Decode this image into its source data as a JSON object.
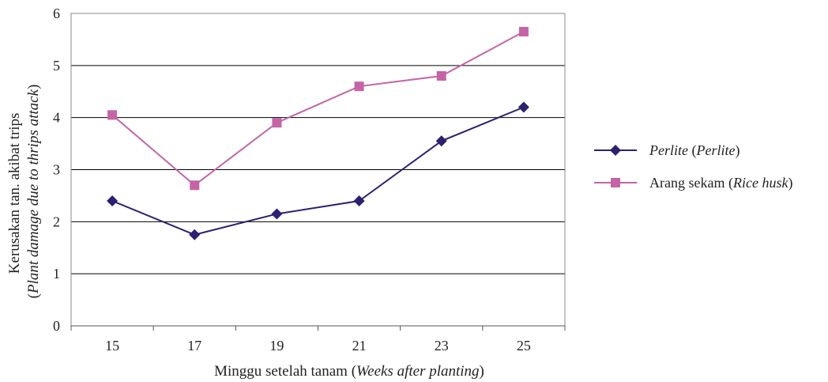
{
  "chart_data": {
    "type": "line",
    "title": "",
    "x": [
      15,
      17,
      19,
      21,
      23,
      25
    ],
    "series": [
      {
        "name": "Perlite (Perlite)",
        "name_main": "Perlite",
        "name_paren": "Perlite",
        "values": [
          2.4,
          1.75,
          2.15,
          2.4,
          3.55,
          4.2
        ],
        "color": "#2b2170",
        "marker": "diamond"
      },
      {
        "name": "Arang sekam (Rice husk)",
        "name_main": "Arang sekam",
        "name_paren": "Rice husk",
        "values": [
          4.05,
          2.7,
          3.9,
          4.6,
          4.8,
          5.65
        ],
        "color": "#c464a6",
        "marker": "square"
      }
    ],
    "xlabel": {
      "main": "Minggu setelah tanam",
      "paren": "Weeks after planting"
    },
    "ylabel": {
      "line1": "Kerusakan tan. akibat trips",
      "line2": "Plant damage due to thrips attack"
    },
    "ylim": [
      0,
      6
    ],
    "yticks": [
      0,
      1,
      2,
      3,
      4,
      5,
      6
    ],
    "xtick_labels": [
      "15",
      "17",
      "19",
      "21",
      "23",
      "25"
    ],
    "grid": true,
    "legend_position": "right"
  }
}
